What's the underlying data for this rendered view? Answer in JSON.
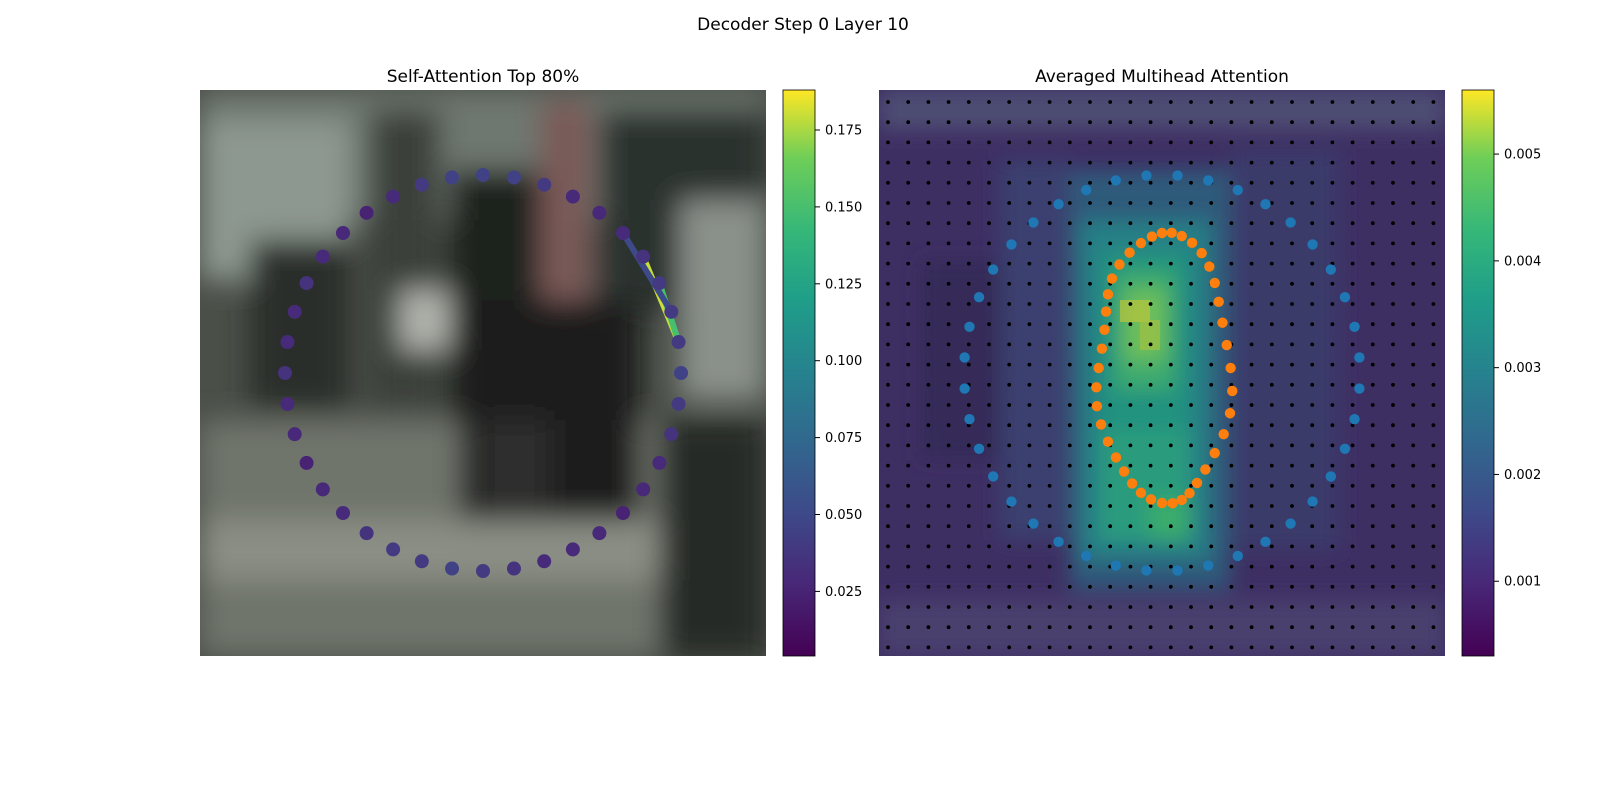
{
  "figure": {
    "suptitle": "Decoder Step 0 Layer 10"
  },
  "chart_data": [
    {
      "type": "scatter",
      "title": "Self-Attention Top 80%",
      "colormap": "viridis",
      "colorbar": {
        "range": [
          0.004,
          0.188
        ],
        "ticks": [
          0.025,
          0.05,
          0.075,
          0.1,
          0.125,
          0.15,
          0.175
        ],
        "tick_labels": [
          "0.025",
          "0.050",
          "0.075",
          "0.100",
          "0.125",
          "0.150",
          "0.175"
        ]
      },
      "background": "blurred street photo (grayscale-green tones)",
      "ring": {
        "count": 40,
        "values": [
          0.045,
          0.045,
          0.04,
          0.03,
          0.028,
          0.03,
          0.035,
          0.04,
          0.04,
          0.04,
          0.045,
          0.04,
          0.035,
          0.03,
          0.028,
          0.025,
          0.028,
          0.03,
          0.03,
          0.035,
          0.04,
          0.045,
          0.04,
          0.04,
          0.035,
          0.03,
          0.028,
          0.025,
          0.028,
          0.03,
          0.035,
          0.03,
          0.03,
          0.035,
          0.03,
          0.028,
          0.025,
          0.03,
          0.04,
          0.045
        ]
      },
      "attention_segments": [
        {
          "from": 6,
          "to": 9,
          "value": 0.18
        },
        {
          "from": 7,
          "to": 9,
          "value": 0.15
        },
        {
          "from": 5,
          "to": 8,
          "value": 0.05
        }
      ]
    },
    {
      "type": "heatmap",
      "title": "Averaged Multihead Attention",
      "colormap": "viridis",
      "colorbar": {
        "range": [
          0.0003,
          0.0056
        ],
        "ticks": [
          0.001,
          0.002,
          0.003,
          0.004,
          0.005
        ],
        "tick_labels": [
          "0.001",
          "0.002",
          "0.003",
          "0.004",
          "0.005"
        ]
      },
      "grid_points": "28 x 28 black sampling points",
      "series": [
        {
          "color": "#1f77b4",
          "shape": "outer ring",
          "count": 40
        },
        {
          "color": "#ff7f0e",
          "shape": "inner contour",
          "count": 40
        }
      ]
    }
  ],
  "colors": {
    "series_blue": "#1f77b4",
    "series_orange": "#ff7f0e"
  }
}
